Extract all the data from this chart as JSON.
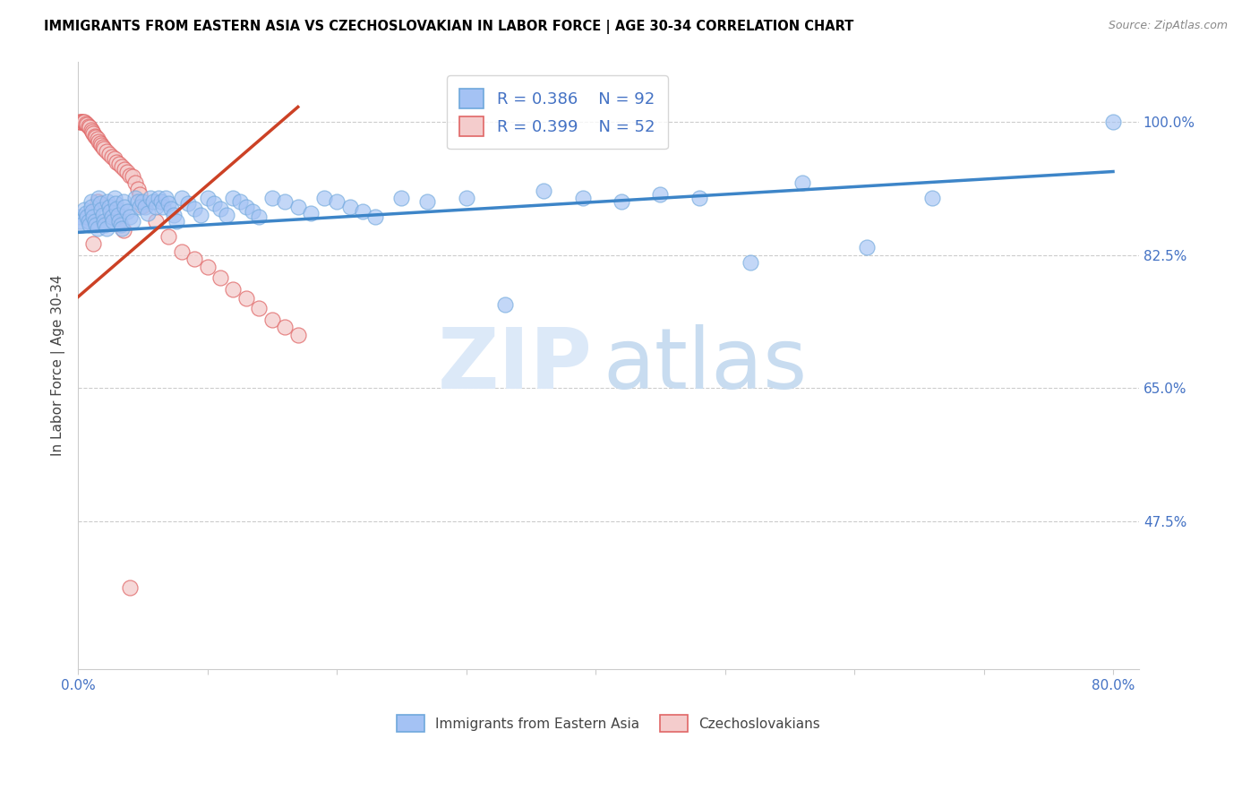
{
  "title": "IMMIGRANTS FROM EASTERN ASIA VS CZECHOSLOVAKIAN IN LABOR FORCE | AGE 30-34 CORRELATION CHART",
  "source": "Source: ZipAtlas.com",
  "ylabel": "In Labor Force | Age 30-34",
  "yticks": [
    1.0,
    0.825,
    0.65,
    0.475
  ],
  "ytick_labels": [
    "100.0%",
    "82.5%",
    "65.0%",
    "47.5%"
  ],
  "xticks": [
    0.0,
    0.1,
    0.2,
    0.3,
    0.4,
    0.5,
    0.6,
    0.7,
    0.8
  ],
  "xtick_labels": [
    "0.0%",
    "",
    "",
    "",
    "",
    "",
    "",
    "",
    "80.0%"
  ],
  "xlim": [
    0.0,
    0.82
  ],
  "ylim": [
    0.28,
    1.08
  ],
  "legend_r1": "R = 0.386",
  "legend_n1": "N = 92",
  "legend_r2": "R = 0.399",
  "legend_n2": "N = 52",
  "blue_color": "#a4c2f4",
  "pink_color": "#f4cccc",
  "blue_edge_color": "#6fa8dc",
  "pink_edge_color": "#e06666",
  "blue_line_color": "#3d85c8",
  "pink_line_color": "#cc4125",
  "grid_color": "#cccccc",
  "title_color": "#000000",
  "tick_color": "#4472c4",
  "blue_trend_x": [
    0.0,
    0.8
  ],
  "blue_trend_y": [
    0.855,
    0.935
  ],
  "pink_trend_x": [
    0.0,
    0.17
  ],
  "pink_trend_y": [
    0.77,
    1.02
  ],
  "blue_scatter_x": [
    0.001,
    0.002,
    0.003,
    0.005,
    0.006,
    0.007,
    0.008,
    0.009,
    0.01,
    0.01,
    0.011,
    0.012,
    0.013,
    0.014,
    0.015,
    0.016,
    0.017,
    0.018,
    0.019,
    0.02,
    0.021,
    0.022,
    0.023,
    0.024,
    0.025,
    0.026,
    0.027,
    0.028,
    0.029,
    0.03,
    0.031,
    0.032,
    0.033,
    0.034,
    0.035,
    0.036,
    0.038,
    0.04,
    0.042,
    0.044,
    0.046,
    0.048,
    0.05,
    0.052,
    0.054,
    0.056,
    0.058,
    0.06,
    0.062,
    0.064,
    0.066,
    0.068,
    0.07,
    0.072,
    0.074,
    0.076,
    0.08,
    0.085,
    0.09,
    0.095,
    0.1,
    0.105,
    0.11,
    0.115,
    0.12,
    0.125,
    0.13,
    0.135,
    0.14,
    0.15,
    0.16,
    0.17,
    0.18,
    0.19,
    0.2,
    0.21,
    0.22,
    0.23,
    0.25,
    0.27,
    0.3,
    0.33,
    0.36,
    0.39,
    0.42,
    0.45,
    0.48,
    0.52,
    0.56,
    0.61,
    0.66,
    0.8
  ],
  "blue_scatter_y": [
    0.875,
    0.87,
    0.865,
    0.885,
    0.88,
    0.875,
    0.87,
    0.865,
    0.895,
    0.888,
    0.882,
    0.876,
    0.87,
    0.865,
    0.86,
    0.9,
    0.893,
    0.885,
    0.878,
    0.87,
    0.865,
    0.86,
    0.895,
    0.888,
    0.882,
    0.876,
    0.87,
    0.9,
    0.893,
    0.886,
    0.878,
    0.87,
    0.865,
    0.86,
    0.895,
    0.888,
    0.882,
    0.876,
    0.87,
    0.9,
    0.895,
    0.888,
    0.896,
    0.888,
    0.88,
    0.9,
    0.895,
    0.888,
    0.9,
    0.895,
    0.888,
    0.9,
    0.893,
    0.886,
    0.878,
    0.87,
    0.9,
    0.893,
    0.886,
    0.878,
    0.9,
    0.893,
    0.886,
    0.878,
    0.9,
    0.895,
    0.888,
    0.882,
    0.876,
    0.9,
    0.896,
    0.888,
    0.88,
    0.9,
    0.895,
    0.888,
    0.882,
    0.876,
    0.9,
    0.895,
    0.9,
    0.76,
    0.91,
    0.9,
    0.895,
    0.905,
    0.9,
    0.815,
    0.92,
    0.835,
    0.9,
    1.0
  ],
  "pink_scatter_x": [
    0.001,
    0.002,
    0.003,
    0.004,
    0.005,
    0.006,
    0.007,
    0.008,
    0.009,
    0.01,
    0.011,
    0.012,
    0.013,
    0.014,
    0.015,
    0.016,
    0.017,
    0.018,
    0.019,
    0.02,
    0.022,
    0.024,
    0.026,
    0.028,
    0.03,
    0.032,
    0.034,
    0.036,
    0.038,
    0.04,
    0.042,
    0.044,
    0.046,
    0.048,
    0.05,
    0.06,
    0.07,
    0.08,
    0.09,
    0.1,
    0.11,
    0.12,
    0.13,
    0.14,
    0.15,
    0.16,
    0.17,
    0.015,
    0.025,
    0.035,
    0.012,
    0.04
  ],
  "pink_scatter_y": [
    1.0,
    1.0,
    1.0,
    1.0,
    1.0,
    0.998,
    0.997,
    0.995,
    0.993,
    0.99,
    0.988,
    0.985,
    0.982,
    0.98,
    0.978,
    0.975,
    0.972,
    0.97,
    0.968,
    0.965,
    0.962,
    0.958,
    0.955,
    0.952,
    0.948,
    0.945,
    0.942,
    0.938,
    0.935,
    0.93,
    0.928,
    0.92,
    0.912,
    0.905,
    0.89,
    0.87,
    0.85,
    0.83,
    0.82,
    0.81,
    0.795,
    0.78,
    0.768,
    0.755,
    0.74,
    0.73,
    0.72,
    0.895,
    0.875,
    0.858,
    0.84,
    0.388
  ]
}
